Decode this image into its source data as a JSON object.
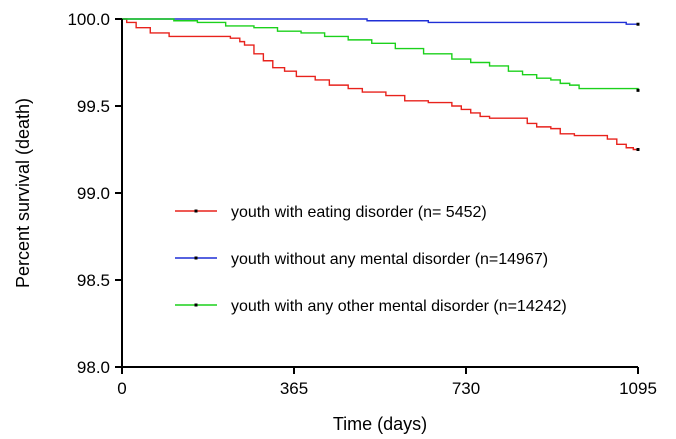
{
  "chart_data": {
    "type": "line",
    "subtype": "kaplan-meier step",
    "title": "",
    "xlabel": "Time (days)",
    "ylabel": "Percent survival (death)",
    "xlim": [
      0,
      1095
    ],
    "ylim": [
      98.0,
      100.0
    ],
    "xticks": [
      0,
      365,
      730,
      1095
    ],
    "xtick_labels": [
      "0",
      "365",
      "730",
      "1095"
    ],
    "yticks": [
      98.0,
      98.5,
      99.0,
      99.5,
      100.0
    ],
    "ytick_labels": [
      "98.0",
      "98.5",
      "99.0",
      "99.5",
      "100.0"
    ],
    "grid": false,
    "legend_position": "center-left inside plot",
    "series": [
      {
        "name": "youth with eating disorder (n= 5452)",
        "color": "#e8221c",
        "points": [
          [
            0,
            100.0
          ],
          [
            10,
            99.98
          ],
          [
            30,
            99.95
          ],
          [
            60,
            99.92
          ],
          [
            100,
            99.9
          ],
          [
            150,
            99.9
          ],
          [
            230,
            99.89
          ],
          [
            250,
            99.87
          ],
          [
            260,
            99.85
          ],
          [
            280,
            99.8
          ],
          [
            300,
            99.76
          ],
          [
            320,
            99.72
          ],
          [
            345,
            99.7
          ],
          [
            370,
            99.67
          ],
          [
            410,
            99.65
          ],
          [
            440,
            99.62
          ],
          [
            480,
            99.6
          ],
          [
            510,
            99.58
          ],
          [
            560,
            99.56
          ],
          [
            600,
            99.53
          ],
          [
            650,
            99.52
          ],
          [
            700,
            99.5
          ],
          [
            720,
            99.48
          ],
          [
            740,
            99.46
          ],
          [
            760,
            99.44
          ],
          [
            780,
            99.43
          ],
          [
            810,
            99.43
          ],
          [
            840,
            99.43
          ],
          [
            860,
            99.4
          ],
          [
            880,
            99.38
          ],
          [
            910,
            99.37
          ],
          [
            930,
            99.34
          ],
          [
            960,
            99.33
          ],
          [
            1000,
            99.33
          ],
          [
            1030,
            99.31
          ],
          [
            1050,
            99.28
          ],
          [
            1070,
            99.26
          ],
          [
            1085,
            99.25
          ],
          [
            1095,
            99.25
          ]
        ]
      },
      {
        "name": "youth without any mental disorder (n=14967)",
        "color": "#1f2fd6",
        "points": [
          [
            0,
            100.0
          ],
          [
            100,
            100.0
          ],
          [
            200,
            100.0
          ],
          [
            400,
            100.0
          ],
          [
            500,
            100.0
          ],
          [
            520,
            99.99
          ],
          [
            600,
            99.99
          ],
          [
            650,
            99.98
          ],
          [
            900,
            99.98
          ],
          [
            1060,
            99.98
          ],
          [
            1070,
            99.97
          ],
          [
            1095,
            99.97
          ]
        ]
      },
      {
        "name": "youth with any other mental disorder (n=14242)",
        "color": "#1bd11b",
        "points": [
          [
            0,
            100.0
          ],
          [
            80,
            100.0
          ],
          [
            110,
            99.99
          ],
          [
            160,
            99.98
          ],
          [
            220,
            99.96
          ],
          [
            280,
            99.95
          ],
          [
            330,
            99.93
          ],
          [
            380,
            99.92
          ],
          [
            430,
            99.9
          ],
          [
            480,
            99.88
          ],
          [
            530,
            99.86
          ],
          [
            580,
            99.83
          ],
          [
            640,
            99.8
          ],
          [
            700,
            99.77
          ],
          [
            740,
            99.75
          ],
          [
            780,
            99.73
          ],
          [
            820,
            99.7
          ],
          [
            850,
            99.68
          ],
          [
            880,
            99.66
          ],
          [
            910,
            99.65
          ],
          [
            930,
            99.63
          ],
          [
            950,
            99.62
          ],
          [
            970,
            99.6
          ],
          [
            1000,
            99.6
          ],
          [
            1095,
            99.59
          ]
        ]
      }
    ]
  }
}
